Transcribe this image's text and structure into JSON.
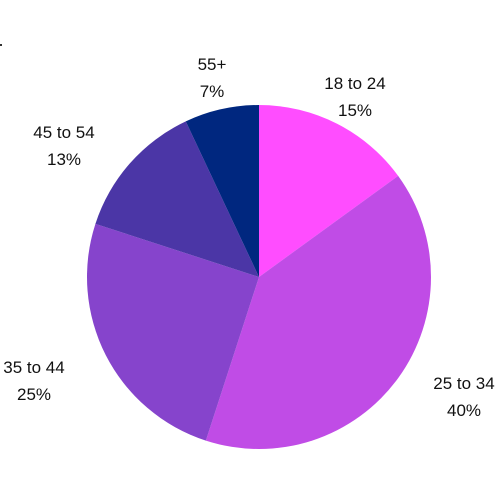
{
  "chart_data": {
    "type": "pie",
    "title": "",
    "start": "top",
    "direction": "clockwise",
    "slices": [
      {
        "label": "18 to 24",
        "value": 15,
        "value_label": "15%",
        "color": "#ff4dff"
      },
      {
        "label": "25 to 34",
        "value": 40,
        "value_label": "40%",
        "color": "#c04ce6"
      },
      {
        "label": "35 to 44",
        "value": 25,
        "value_label": "25%",
        "color": "#8644cc"
      },
      {
        "label": "45 to 54",
        "value": 13,
        "value_label": "13%",
        "color": "#4b36a6"
      },
      {
        "label": "55+",
        "value": 7,
        "value_label": "7%",
        "color": "#00277f"
      }
    ]
  }
}
